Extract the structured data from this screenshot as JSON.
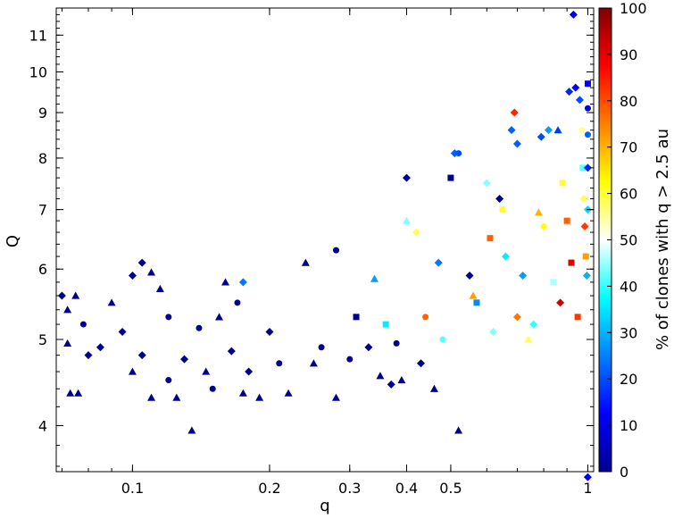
{
  "chart_data": {
    "type": "scatter",
    "title": "",
    "xlabel": "q",
    "ylabel": "Q",
    "x_scale": "log",
    "y_scale": "log",
    "xlim": [
      0.068,
      1.03
    ],
    "ylim": [
      3.55,
      11.8
    ],
    "x_ticks": [
      0.1,
      0.2,
      0.3,
      0.4,
      0.5,
      1
    ],
    "x_tick_labels": [
      "0.1",
      "0.2",
      "0.3",
      "0.4",
      "0.5",
      "1"
    ],
    "y_ticks": [
      4,
      5,
      6,
      7,
      8,
      9,
      10,
      11
    ],
    "y_tick_labels": [
      "4",
      "5",
      "6",
      "7",
      "8",
      "9",
      "10",
      "11"
    ],
    "grid": false,
    "colorbar": {
      "label": "% of clones with q > 2.5 au",
      "range": [
        0,
        100
      ],
      "ticks": [
        0,
        10,
        20,
        30,
        40,
        50,
        60,
        70,
        80,
        90,
        100
      ],
      "tick_labels": [
        "0",
        "10",
        "20",
        "30",
        "40",
        "50",
        "60",
        "70",
        "80",
        "90",
        "100"
      ],
      "colormap": [
        "#00008f",
        "#0000ff",
        "#0080ff",
        "#00ffff",
        "#ffffff",
        "#ffff00",
        "#ff8000",
        "#ff0000",
        "#800000"
      ]
    },
    "marker_shapes": [
      "diamond",
      "triangle",
      "circle",
      "square"
    ],
    "points": [
      {
        "x": 0.07,
        "y": 5.6,
        "c": 0,
        "m": "diamond"
      },
      {
        "x": 0.072,
        "y": 5.4,
        "c": 0,
        "m": "triangle"
      },
      {
        "x": 0.075,
        "y": 5.6,
        "c": 0,
        "m": "triangle"
      },
      {
        "x": 0.078,
        "y": 5.2,
        "c": 0,
        "m": "circle"
      },
      {
        "x": 0.08,
        "y": 4.8,
        "c": 0,
        "m": "diamond"
      },
      {
        "x": 0.072,
        "y": 4.95,
        "c": 0,
        "m": "triangle"
      },
      {
        "x": 0.073,
        "y": 4.35,
        "c": 0,
        "m": "triangle"
      },
      {
        "x": 0.076,
        "y": 4.35,
        "c": 0,
        "m": "triangle"
      },
      {
        "x": 0.085,
        "y": 4.9,
        "c": 0,
        "m": "diamond"
      },
      {
        "x": 0.09,
        "y": 5.5,
        "c": 0,
        "m": "triangle"
      },
      {
        "x": 0.095,
        "y": 5.1,
        "c": 0,
        "m": "diamond"
      },
      {
        "x": 0.1,
        "y": 5.9,
        "c": 0,
        "m": "diamond"
      },
      {
        "x": 0.105,
        "y": 6.1,
        "c": 0,
        "m": "diamond"
      },
      {
        "x": 0.11,
        "y": 5.95,
        "c": 0,
        "m": "triangle"
      },
      {
        "x": 0.115,
        "y": 5.7,
        "c": 0,
        "m": "triangle"
      },
      {
        "x": 0.12,
        "y": 5.3,
        "c": 0,
        "m": "circle"
      },
      {
        "x": 0.1,
        "y": 4.6,
        "c": 0,
        "m": "triangle"
      },
      {
        "x": 0.105,
        "y": 4.8,
        "c": 0,
        "m": "diamond"
      },
      {
        "x": 0.11,
        "y": 4.3,
        "c": 0,
        "m": "triangle"
      },
      {
        "x": 0.12,
        "y": 4.5,
        "c": 0,
        "m": "circle"
      },
      {
        "x": 0.125,
        "y": 4.3,
        "c": 0,
        "m": "triangle"
      },
      {
        "x": 0.13,
        "y": 4.75,
        "c": 0,
        "m": "diamond"
      },
      {
        "x": 0.135,
        "y": 3.95,
        "c": 0,
        "m": "triangle"
      },
      {
        "x": 0.14,
        "y": 5.15,
        "c": 0,
        "m": "circle"
      },
      {
        "x": 0.145,
        "y": 4.6,
        "c": 0,
        "m": "triangle"
      },
      {
        "x": 0.15,
        "y": 4.4,
        "c": 0,
        "m": "circle"
      },
      {
        "x": 0.155,
        "y": 5.3,
        "c": 0,
        "m": "triangle"
      },
      {
        "x": 0.16,
        "y": 5.8,
        "c": 0,
        "m": "triangle"
      },
      {
        "x": 0.165,
        "y": 4.85,
        "c": 0,
        "m": "diamond"
      },
      {
        "x": 0.17,
        "y": 5.5,
        "c": 0,
        "m": "circle"
      },
      {
        "x": 0.175,
        "y": 4.35,
        "c": 0,
        "m": "triangle"
      },
      {
        "x": 0.175,
        "y": 5.8,
        "c": 24,
        "m": "diamond"
      },
      {
        "x": 0.18,
        "y": 4.6,
        "c": 0,
        "m": "diamond"
      },
      {
        "x": 0.19,
        "y": 4.3,
        "c": 0,
        "m": "triangle"
      },
      {
        "x": 0.2,
        "y": 5.1,
        "c": 0,
        "m": "diamond"
      },
      {
        "x": 0.21,
        "y": 4.7,
        "c": 0,
        "m": "circle"
      },
      {
        "x": 0.22,
        "y": 4.35,
        "c": 0,
        "m": "triangle"
      },
      {
        "x": 0.24,
        "y": 6.1,
        "c": 0,
        "m": "triangle"
      },
      {
        "x": 0.25,
        "y": 4.7,
        "c": 0,
        "m": "triangle"
      },
      {
        "x": 0.26,
        "y": 4.9,
        "c": 0,
        "m": "circle"
      },
      {
        "x": 0.28,
        "y": 6.3,
        "c": 0,
        "m": "circle"
      },
      {
        "x": 0.28,
        "y": 4.3,
        "c": 0,
        "m": "triangle"
      },
      {
        "x": 0.3,
        "y": 4.75,
        "c": 0,
        "m": "circle"
      },
      {
        "x": 0.31,
        "y": 5.3,
        "c": 0,
        "m": "square"
      },
      {
        "x": 0.33,
        "y": 4.9,
        "c": 0,
        "m": "diamond"
      },
      {
        "x": 0.34,
        "y": 5.85,
        "c": 28,
        "m": "triangle"
      },
      {
        "x": 0.35,
        "y": 4.55,
        "c": 0,
        "m": "triangle"
      },
      {
        "x": 0.36,
        "y": 5.2,
        "c": 36,
        "m": "square"
      },
      {
        "x": 0.37,
        "y": 4.45,
        "c": 0,
        "m": "diamond"
      },
      {
        "x": 0.38,
        "y": 4.95,
        "c": 0,
        "m": "circle"
      },
      {
        "x": 0.39,
        "y": 4.5,
        "c": 0,
        "m": "triangle"
      },
      {
        "x": 0.4,
        "y": 7.6,
        "c": 0,
        "m": "diamond"
      },
      {
        "x": 0.4,
        "y": 6.8,
        "c": 44,
        "m": "triangle"
      },
      {
        "x": 0.42,
        "y": 6.6,
        "c": 58,
        "m": "diamond"
      },
      {
        "x": 0.43,
        "y": 4.7,
        "c": 0,
        "m": "diamond"
      },
      {
        "x": 0.44,
        "y": 5.3,
        "c": 78,
        "m": "circle"
      },
      {
        "x": 0.46,
        "y": 4.4,
        "c": 0,
        "m": "triangle"
      },
      {
        "x": 0.47,
        "y": 6.1,
        "c": 24,
        "m": "diamond"
      },
      {
        "x": 0.48,
        "y": 5.0,
        "c": 42,
        "m": "circle"
      },
      {
        "x": 0.5,
        "y": 7.6,
        "c": 0,
        "m": "square"
      },
      {
        "x": 0.51,
        "y": 8.1,
        "c": 22,
        "m": "diamond"
      },
      {
        "x": 0.52,
        "y": 8.1,
        "c": 20,
        "m": "circle"
      },
      {
        "x": 0.52,
        "y": 3.95,
        "c": 0,
        "m": "triangle"
      },
      {
        "x": 0.55,
        "y": 5.9,
        "c": 0,
        "m": "diamond"
      },
      {
        "x": 0.56,
        "y": 5.6,
        "c": 72,
        "m": "triangle"
      },
      {
        "x": 0.57,
        "y": 5.5,
        "c": 26,
        "m": "square"
      },
      {
        "x": 0.6,
        "y": 7.5,
        "c": 44,
        "m": "diamond"
      },
      {
        "x": 0.61,
        "y": 6.5,
        "c": 78,
        "m": "square"
      },
      {
        "x": 0.62,
        "y": 5.1,
        "c": 44,
        "m": "diamond"
      },
      {
        "x": 0.64,
        "y": 7.2,
        "c": 0,
        "m": "diamond"
      },
      {
        "x": 0.65,
        "y": 7.0,
        "c": 60,
        "m": "square"
      },
      {
        "x": 0.66,
        "y": 6.2,
        "c": 36,
        "m": "diamond"
      },
      {
        "x": 0.68,
        "y": 8.6,
        "c": 22,
        "m": "diamond"
      },
      {
        "x": 0.69,
        "y": 9.0,
        "c": 84,
        "m": "diamond"
      },
      {
        "x": 0.7,
        "y": 8.3,
        "c": 22,
        "m": "diamond"
      },
      {
        "x": 0.7,
        "y": 5.3,
        "c": 76,
        "m": "diamond"
      },
      {
        "x": 0.72,
        "y": 5.9,
        "c": 28,
        "m": "diamond"
      },
      {
        "x": 0.74,
        "y": 5.0,
        "c": 58,
        "m": "triangle"
      },
      {
        "x": 0.76,
        "y": 5.2,
        "c": 40,
        "m": "diamond"
      },
      {
        "x": 0.78,
        "y": 6.95,
        "c": 70,
        "m": "triangle"
      },
      {
        "x": 0.79,
        "y": 8.45,
        "c": 20,
        "m": "diamond"
      },
      {
        "x": 0.8,
        "y": 6.7,
        "c": 62,
        "m": "circle"
      },
      {
        "x": 0.82,
        "y": 8.6,
        "c": 28,
        "m": "diamond"
      },
      {
        "x": 0.84,
        "y": 5.8,
        "c": 46,
        "m": "square"
      },
      {
        "x": 0.86,
        "y": 8.6,
        "c": 18,
        "m": "triangle"
      },
      {
        "x": 0.87,
        "y": 5.5,
        "c": 92,
        "m": "diamond"
      },
      {
        "x": 0.88,
        "y": 7.5,
        "c": 60,
        "m": "square"
      },
      {
        "x": 0.9,
        "y": 6.8,
        "c": 78,
        "m": "square"
      },
      {
        "x": 0.91,
        "y": 9.5,
        "c": 16,
        "m": "diamond"
      },
      {
        "x": 0.92,
        "y": 6.1,
        "c": 90,
        "m": "square"
      },
      {
        "x": 0.93,
        "y": 11.6,
        "c": 8,
        "m": "diamond"
      },
      {
        "x": 0.94,
        "y": 9.6,
        "c": 12,
        "m": "diamond"
      },
      {
        "x": 0.95,
        "y": 5.3,
        "c": 82,
        "m": "square"
      },
      {
        "x": 0.96,
        "y": 9.3,
        "c": 20,
        "m": "diamond"
      },
      {
        "x": 0.97,
        "y": 8.6,
        "c": 55,
        "m": "circle"
      },
      {
        "x": 0.975,
        "y": 7.8,
        "c": 42,
        "m": "square"
      },
      {
        "x": 0.98,
        "y": 7.2,
        "c": 58,
        "m": "diamond"
      },
      {
        "x": 0.985,
        "y": 6.7,
        "c": 82,
        "m": "diamond"
      },
      {
        "x": 0.99,
        "y": 6.2,
        "c": 72,
        "m": "square"
      },
      {
        "x": 0.995,
        "y": 5.9,
        "c": 30,
        "m": "diamond"
      },
      {
        "x": 1.0,
        "y": 9.7,
        "c": 12,
        "m": "square"
      },
      {
        "x": 1.0,
        "y": 9.1,
        "c": 10,
        "m": "circle"
      },
      {
        "x": 1.0,
        "y": 8.5,
        "c": 22,
        "m": "circle"
      },
      {
        "x": 1.0,
        "y": 7.8,
        "c": 16,
        "m": "diamond"
      },
      {
        "x": 1.0,
        "y": 7.0,
        "c": 34,
        "m": "diamond"
      },
      {
        "x": 1.0,
        "y": 3.5,
        "c": 12,
        "m": "diamond"
      }
    ]
  }
}
